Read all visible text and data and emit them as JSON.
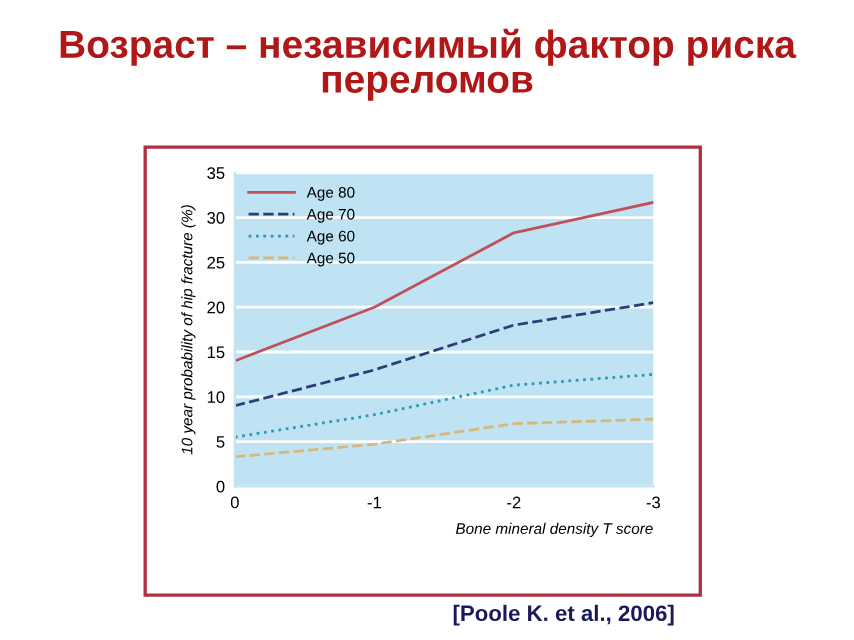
{
  "chart_data": {
    "type": "line",
    "title": "Возраст – независимый фактор риска\nпереломов",
    "xlabel": "Bone mineral density T score",
    "ylabel": "10 year probability of hip fracture (%)",
    "x": [
      0,
      -1,
      -2,
      -3
    ],
    "xlim": [
      0,
      -3
    ],
    "xticks": [
      0,
      -1,
      -2,
      -3
    ],
    "ylim": [
      0,
      35
    ],
    "yticks": [
      0,
      5,
      10,
      15,
      20,
      25,
      30,
      35
    ],
    "grid": "y",
    "legend": "top left",
    "marker": "none",
    "series": [
      {
        "name": "Age 80",
        "color": "#c0505a",
        "line_style": "solid",
        "values": [
          14,
          20,
          28.3,
          31.7
        ]
      },
      {
        "name": "Age 70",
        "color": "#2a3f7a",
        "line_style": "dashed",
        "values": [
          9,
          13,
          18,
          20.5
        ]
      },
      {
        "name": "Age 60",
        "color": "#2a9ab8",
        "line_style": "dotted",
        "values": [
          5.5,
          8,
          11.3,
          12.5
        ]
      },
      {
        "name": "Age 50",
        "color": "#d8b87a",
        "line_style": "dashed",
        "values": [
          3.3,
          4.7,
          7,
          7.5
        ]
      }
    ],
    "annotations": [
      "[Poole K. et al., 2006]"
    ]
  }
}
